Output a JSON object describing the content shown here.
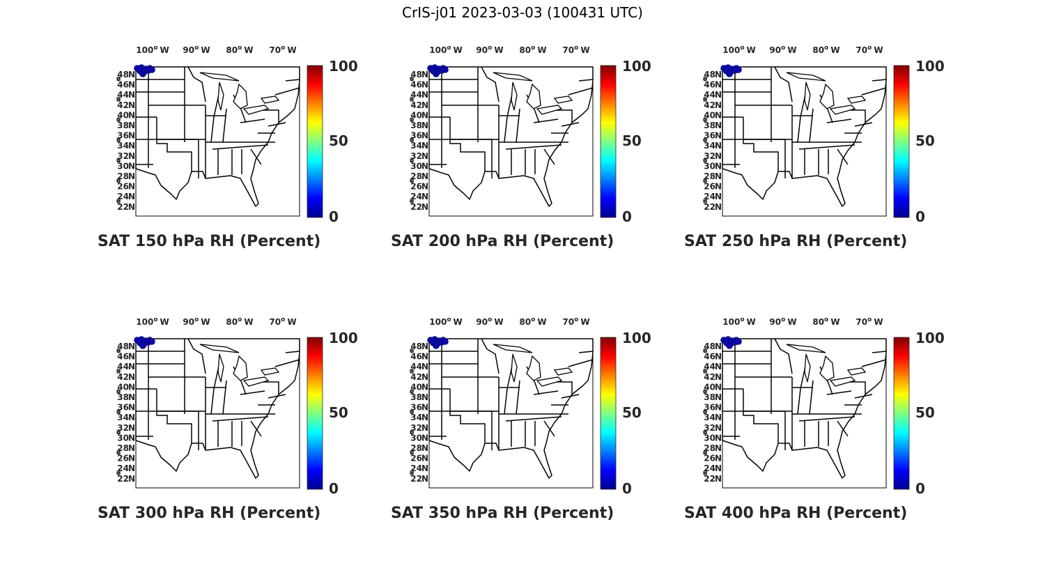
{
  "title": "CrIS-j01 2023-03-03 (100431 UTC)",
  "colors": {
    "colormap": [
      "#00008f",
      "#0000ff",
      "#0080ff",
      "#00ffff",
      "#80ff80",
      "#ffff00",
      "#ff8000",
      "#ff0000",
      "#800000"
    ],
    "land_fill": "#ffffff",
    "border": "#000000",
    "observation_marker": "#0a0aa8"
  },
  "map": {
    "lon_ticks": [
      "100",
      "90",
      "80",
      "70"
    ],
    "lon_hemisphere": "W",
    "lat_ticks": [
      "48",
      "46",
      "44",
      "42",
      "40",
      "38",
      "36",
      "34",
      "32",
      "30",
      "28",
      "26",
      "24",
      "22"
    ],
    "lat_hemisphere": "N",
    "degree_symbol": "o"
  },
  "colorbar": {
    "ticks": [
      "100",
      "50",
      "0"
    ],
    "range": [
      0,
      100
    ]
  },
  "panels": [
    {
      "title": "SAT 150 hPa RH (Percent)"
    },
    {
      "title": "SAT 200 hPa RH (Percent)"
    },
    {
      "title": "SAT 250 hPa RH (Percent)"
    },
    {
      "title": "SAT 300 hPa RH (Percent)"
    },
    {
      "title": "SAT 350 hPa RH (Percent)"
    },
    {
      "title": "SAT 400 hPa RH (Percent)"
    }
  ]
}
